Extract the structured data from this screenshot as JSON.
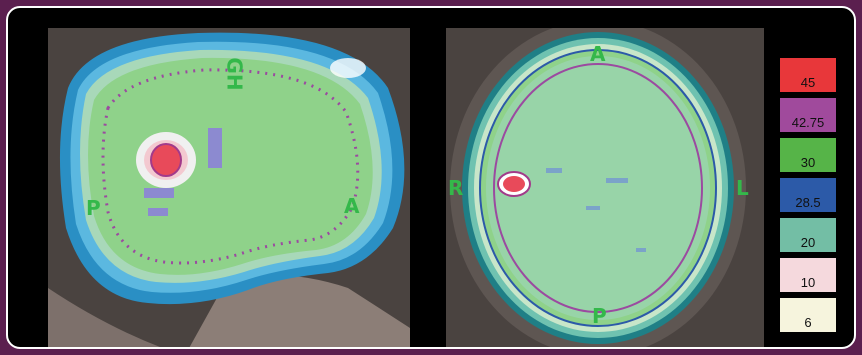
{
  "sagittal_view": {
    "orientation_labels": {
      "posterior": "P",
      "anterior": "A",
      "gh": "GH"
    }
  },
  "axial_view": {
    "orientation_labels": {
      "anterior": "A",
      "posterior": "P",
      "right": "R",
      "left": "L"
    }
  },
  "legend": {
    "items": [
      {
        "label": "45",
        "color": "#e8373a"
      },
      {
        "label": "42.75",
        "color": "#a04a9c"
      },
      {
        "label": "30",
        "color": "#56b448"
      },
      {
        "label": "28.5",
        "color": "#2c5aa8"
      },
      {
        "label": "20",
        "color": "#73bea5"
      },
      {
        "label": "10",
        "color": "#f5d9dd"
      },
      {
        "label": "6",
        "color": "#f6f4dd"
      }
    ]
  }
}
